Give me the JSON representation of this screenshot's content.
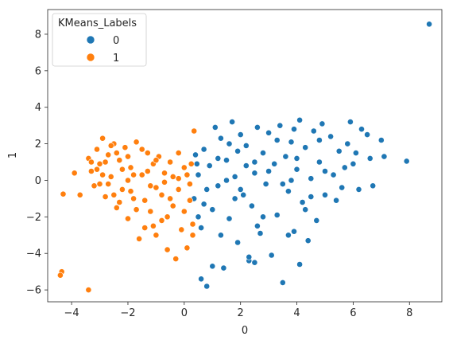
{
  "chart_data": {
    "type": "scatter",
    "title": "",
    "xlabel": "0",
    "ylabel": "1",
    "xlim": [
      -4.85,
      9.15
    ],
    "ylim": [
      -6.65,
      9.35
    ],
    "xticks": [
      -4,
      -2,
      0,
      2,
      4,
      6,
      8
    ],
    "yticks": [
      -6,
      -4,
      -2,
      0,
      2,
      4,
      6,
      8
    ],
    "grid": false,
    "legend": {
      "title": "KMeans_Labels",
      "placement": "top-left",
      "entries": [
        {
          "label": "0",
          "color": "#1f77b4"
        },
        {
          "label": "1",
          "color": "#ff7f0e"
        }
      ]
    },
    "series": [
      {
        "label": "0",
        "color": "#1f77b4",
        "points": [
          [
            8.7,
            8.55
          ],
          [
            7.9,
            1.05
          ],
          [
            7.1,
            1.3
          ],
          [
            7.0,
            2.2
          ],
          [
            6.7,
            -0.3
          ],
          [
            6.6,
            1.2
          ],
          [
            6.5,
            2.5
          ],
          [
            6.3,
            2.8
          ],
          [
            6.2,
            -0.5
          ],
          [
            6.0,
            0.9
          ],
          [
            5.9,
            3.2
          ],
          [
            5.8,
            2.0
          ],
          [
            5.6,
            -0.4
          ],
          [
            5.5,
            1.6
          ],
          [
            5.3,
            0.3
          ],
          [
            5.2,
            2.4
          ],
          [
            5.0,
            -0.8
          ],
          [
            4.9,
            3.1
          ],
          [
            4.8,
            1.0
          ],
          [
            4.7,
            -2.2
          ],
          [
            4.6,
            2.7
          ],
          [
            4.5,
            0.1
          ],
          [
            4.4,
            -3.3
          ],
          [
            4.3,
            1.8
          ],
          [
            4.2,
            -1.2
          ],
          [
            4.1,
            3.3
          ],
          [
            4.0,
            0.6
          ],
          [
            3.9,
            -2.8
          ],
          [
            3.8,
            2.1
          ],
          [
            3.7,
            -0.6
          ],
          [
            3.6,
            1.3
          ],
          [
            3.5,
            -5.6
          ],
          [
            3.4,
            3.0
          ],
          [
            3.3,
            -1.9
          ],
          [
            3.2,
            0.9
          ],
          [
            3.1,
            -4.1
          ],
          [
            3.0,
            2.6
          ],
          [
            2.9,
            -0.2
          ],
          [
            2.8,
            1.5
          ],
          [
            2.7,
            -2.9
          ],
          [
            2.6,
            2.9
          ],
          [
            2.5,
            0.4
          ],
          [
            2.4,
            -1.4
          ],
          [
            2.3,
            -4.4
          ],
          [
            2.2,
            1.9
          ],
          [
            2.1,
            -0.8
          ],
          [
            2.0,
            2.5
          ],
          [
            1.9,
            -3.4
          ],
          [
            1.8,
            0.2
          ],
          [
            1.7,
            3.2
          ],
          [
            1.6,
            -2.1
          ],
          [
            1.5,
            1.1
          ],
          [
            1.4,
            -4.8
          ],
          [
            1.3,
            2.3
          ],
          [
            1.2,
            -0.3
          ],
          [
            1.1,
            2.9
          ],
          [
            1.0,
            -1.6
          ],
          [
            0.9,
            0.8
          ],
          [
            0.8,
            -5.8
          ],
          [
            0.7,
            1.7
          ],
          [
            0.6,
            -2.6
          ],
          [
            0.5,
            0.3
          ],
          [
            0.4,
            1.4
          ],
          [
            0.35,
            -1.0
          ],
          [
            2.3,
            -4.2
          ],
          [
            2.5,
            -4.5
          ],
          [
            1.0,
            -4.7
          ],
          [
            0.6,
            -5.4
          ],
          [
            3.7,
            -3.0
          ],
          [
            4.1,
            -4.6
          ],
          [
            1.5,
            0.0
          ],
          [
            2.0,
            -0.5
          ],
          [
            2.5,
            1.0
          ],
          [
            3.0,
            0.5
          ],
          [
            3.5,
            -0.2
          ],
          [
            4.0,
            1.2
          ],
          [
            4.5,
            -0.9
          ],
          [
            5.0,
            0.5
          ],
          [
            1.2,
            1.2
          ],
          [
            1.8,
            -1.0
          ],
          [
            2.8,
            -2.0
          ],
          [
            3.3,
            2.2
          ],
          [
            4.3,
            -1.6
          ],
          [
            0.8,
            -0.5
          ],
          [
            1.6,
            2.0
          ],
          [
            2.2,
            0.8
          ],
          [
            3.8,
            0.0
          ],
          [
            4.8,
            2.2
          ],
          [
            5.4,
            -1.1
          ],
          [
            0.5,
            -2.0
          ],
          [
            1.3,
            -3.0
          ],
          [
            2.6,
            -2.5
          ],
          [
            3.9,
            2.8
          ],
          [
            5.7,
            0.7
          ],
          [
            6.1,
            1.5
          ],
          [
            0.45,
            0.9
          ],
          [
            0.7,
            -1.3
          ],
          [
            1.9,
            1.6
          ]
        ]
      },
      {
        "label": "1",
        "color": "#ff7f0e",
        "points": [
          [
            -4.3,
            -0.75
          ],
          [
            -4.35,
            -5.0
          ],
          [
            -4.4,
            -5.2
          ],
          [
            -3.4,
            -6.0
          ],
          [
            -3.9,
            0.4
          ],
          [
            -3.7,
            -0.8
          ],
          [
            -3.4,
            1.2
          ],
          [
            -3.3,
            0.5
          ],
          [
            -3.2,
            -0.3
          ],
          [
            -3.1,
            1.7
          ],
          [
            -3.0,
            0.9
          ],
          [
            -2.9,
            2.3
          ],
          [
            -2.8,
            -0.9
          ],
          [
            -2.7,
            1.4
          ],
          [
            -2.6,
            0.2
          ],
          [
            -2.5,
            2.0
          ],
          [
            -2.4,
            -1.5
          ],
          [
            -2.3,
            1.1
          ],
          [
            -2.2,
            -0.5
          ],
          [
            -2.1,
            1.8
          ],
          [
            -2.0,
            -2.1
          ],
          [
            -1.9,
            0.7
          ],
          [
            -1.8,
            -1.0
          ],
          [
            -1.7,
            2.1
          ],
          [
            -1.6,
            -3.2
          ],
          [
            -1.5,
            0.3
          ],
          [
            -1.4,
            -2.6
          ],
          [
            -1.3,
            1.5
          ],
          [
            -1.2,
            -1.7
          ],
          [
            -1.1,
            0.9
          ],
          [
            -1.0,
            -3.0
          ],
          [
            -0.9,
            1.3
          ],
          [
            -0.8,
            -2.2
          ],
          [
            -0.7,
            0.4
          ],
          [
            -0.6,
            -3.8
          ],
          [
            -0.5,
            1.0
          ],
          [
            -0.4,
            -1.4
          ],
          [
            -0.3,
            -4.3
          ],
          [
            -0.2,
            0.1
          ],
          [
            -0.1,
            -2.7
          ],
          [
            0.0,
            0.7
          ],
          [
            0.1,
            -3.7
          ],
          [
            0.2,
            -1.1
          ],
          [
            0.25,
            0.9
          ],
          [
            0.3,
            -2.4
          ],
          [
            0.35,
            2.7
          ],
          [
            0.3,
            -3.0
          ],
          [
            -0.2,
            1.5
          ],
          [
            -1.0,
            1.1
          ],
          [
            -1.5,
            1.7
          ],
          [
            -2.0,
            0.0
          ],
          [
            -2.5,
            -0.8
          ],
          [
            -3.0,
            -0.2
          ],
          [
            -2.2,
            0.6
          ],
          [
            -1.8,
            0.3
          ],
          [
            -1.2,
            -0.3
          ],
          [
            -0.8,
            -0.8
          ],
          [
            -0.4,
            0.2
          ],
          [
            0.0,
            -1.7
          ],
          [
            -2.7,
            -0.2
          ],
          [
            -2.9,
            0.3
          ],
          [
            -3.1,
            0.6
          ],
          [
            -2.4,
            1.5
          ],
          [
            -1.9,
            -0.6
          ],
          [
            -1.4,
            -1.1
          ],
          [
            -1.0,
            -0.4
          ],
          [
            -0.6,
            -2.0
          ],
          [
            -0.2,
            -0.5
          ],
          [
            0.1,
            0.3
          ],
          [
            -2.6,
            1.9
          ],
          [
            -2.3,
            -1.2
          ],
          [
            -1.7,
            -1.6
          ],
          [
            -1.1,
            -2.5
          ],
          [
            -0.5,
            -1.0
          ],
          [
            0.2,
            -0.2
          ],
          [
            -3.3,
            1.0
          ],
          [
            -2.8,
            1.0
          ],
          [
            -2.0,
            1.3
          ],
          [
            -1.3,
            0.5
          ],
          [
            -0.7,
            -0.1
          ]
        ]
      }
    ]
  }
}
